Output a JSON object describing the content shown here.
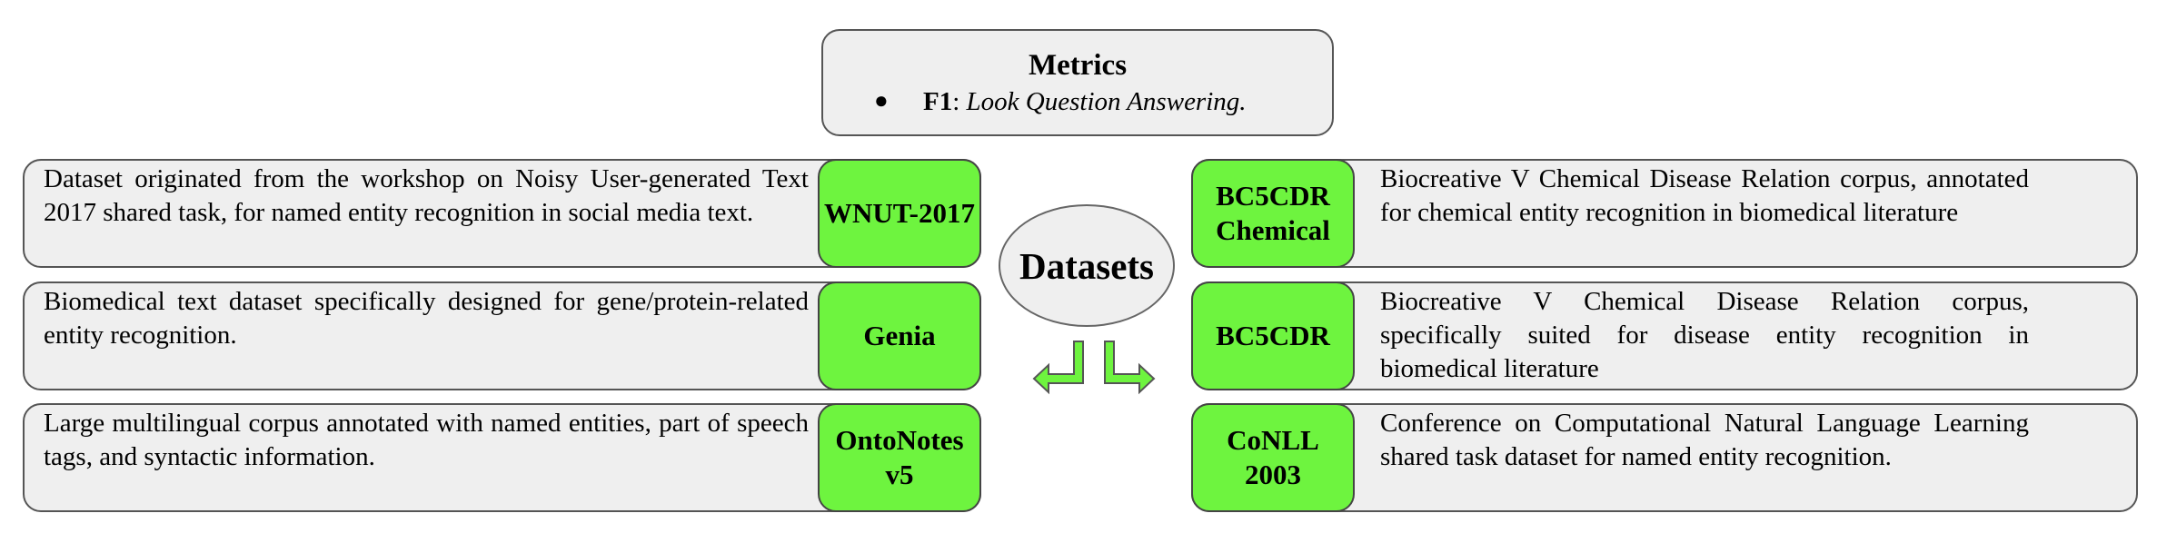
{
  "metrics": {
    "title": "Metrics",
    "item_label": "F1",
    "item_sep": ": ",
    "item_text": "Look Question Answering."
  },
  "center": {
    "label": "Datasets"
  },
  "left_rows": [
    {
      "tag_lines": [
        "WNUT-2017"
      ],
      "description": "Dataset originated from the workshop on Noisy User-generated Text 2017 shared task, for named entity recognition in social media text."
    },
    {
      "tag_lines": [
        "Genia"
      ],
      "description": "Biomedical text dataset specifically designed for gene/protein-related entity recognition."
    },
    {
      "tag_lines": [
        "OntoNotes",
        "v5"
      ],
      "description": "Large multilingual corpus annotated with named entities, part of speech tags, and syntactic information."
    }
  ],
  "right_rows": [
    {
      "tag_lines": [
        "BC5CDR",
        "Chemical"
      ],
      "description": "Biocreative V Chemical Disease Relation corpus, annotated for chemical entity recognition in biomedical literature"
    },
    {
      "tag_lines": [
        "BC5CDR"
      ],
      "description": "Biocreative V Chemical Disease Relation corpus, specifically suited for disease entity recognition in biomedical literature"
    },
    {
      "tag_lines": [
        "CoNLL",
        "2003"
      ],
      "description": "Conference on Computational Natural Language Learning shared task dataset for named entity recognition."
    }
  ],
  "colors": {
    "tag_fill": "#6ef43f",
    "box_fill": "#efefef",
    "border": "#555555",
    "arrow_fill": "#6ef43f"
  },
  "icons": {
    "arrows": "bent-arrow-icon"
  }
}
